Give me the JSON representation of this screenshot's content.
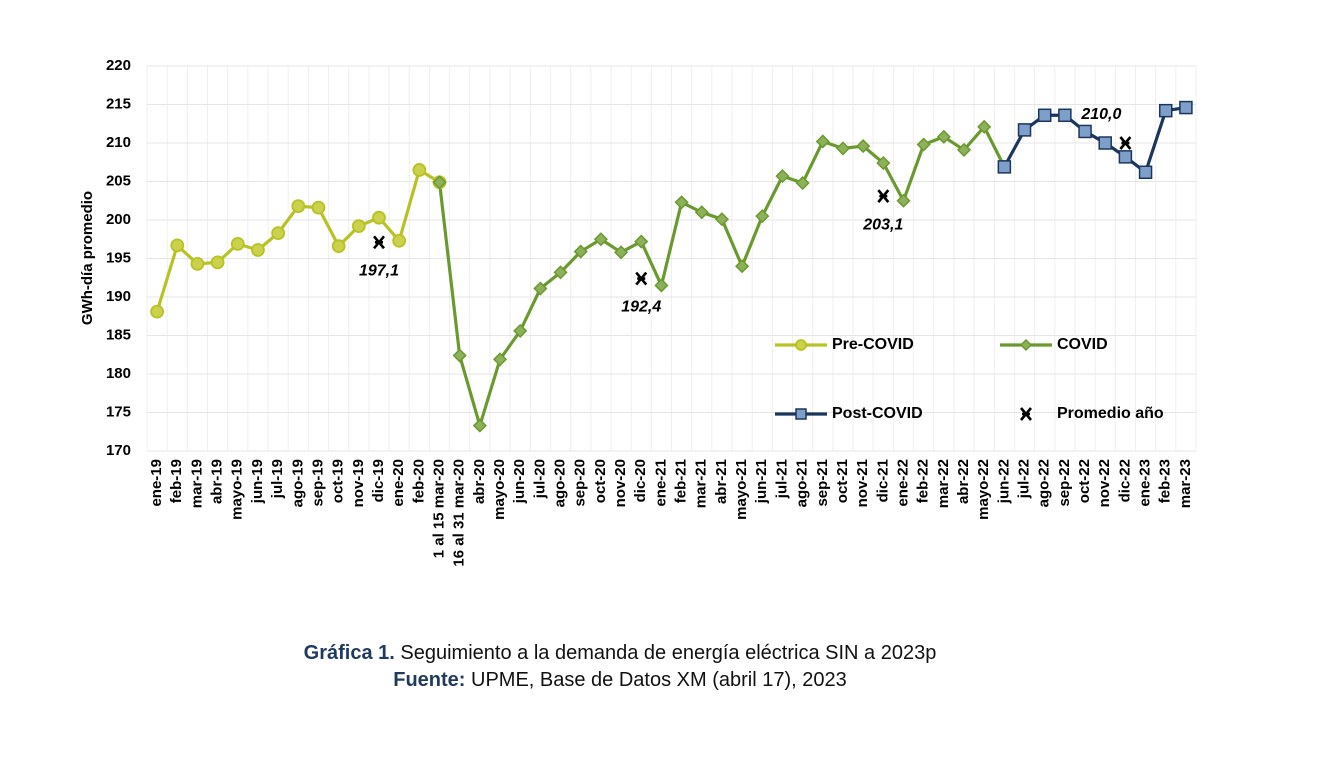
{
  "chart_data": {
    "type": "line",
    "y_label": "GWh-día promedio",
    "categories": [
      "ene-19",
      "feb-19",
      "mar-19",
      "abr-19",
      "mayo-19",
      "jun-19",
      "jul-19",
      "ago-19",
      "sep-19",
      "oct-19",
      "nov-19",
      "dic-19",
      "ene-20",
      "feb-20",
      "1 al 15 mar-20",
      "16 al 31 mar-20",
      "abr-20",
      "mayo-20",
      "jun-20",
      "jul-20",
      "ago-20",
      "sep-20",
      "oct-20",
      "nov-20",
      "dic-20",
      "ene-21",
      "feb-21",
      "mar-21",
      "abr-21",
      "mayo-21",
      "jun-21",
      "jul-21",
      "ago-21",
      "sep-21",
      "oct-21",
      "nov-21",
      "dic-21",
      "ene-22",
      "feb-22",
      "mar-22",
      "abr-22",
      "mayo-22",
      "jun-22",
      "jul-22",
      "ago-22",
      "sep-22",
      "oct-22",
      "nov-22",
      "dic-22",
      "ene-23",
      "feb-23",
      "mar-23"
    ],
    "series": [
      {
        "name": "Pre-COVID",
        "color": "#b8c224",
        "fill": "#c9d24a",
        "marker": "circle",
        "line": true,
        "values": [
          188.1,
          196.7,
          194.3,
          194.5,
          196.9,
          196.1,
          198.3,
          201.8,
          201.6,
          196.6,
          199.2,
          200.3,
          197.3,
          206.5,
          204.9,
          null,
          null,
          null,
          null,
          null,
          null,
          null,
          null,
          null,
          null,
          null,
          null,
          null,
          null,
          null,
          null,
          null,
          null,
          null,
          null,
          null,
          null,
          null,
          null,
          null,
          null,
          null,
          null,
          null,
          null,
          null,
          null,
          null,
          null,
          null,
          null,
          null
        ]
      },
      {
        "name": "COVID",
        "color": "#6a9a2e",
        "fill": "#8db15a",
        "marker": "diamond",
        "line": true,
        "values": [
          null,
          null,
          null,
          null,
          null,
          null,
          null,
          null,
          null,
          null,
          null,
          null,
          null,
          null,
          204.9,
          182.4,
          173.3,
          181.9,
          185.6,
          191.1,
          193.2,
          195.9,
          197.5,
          195.8,
          197.2,
          191.5,
          202.3,
          201.0,
          200.1,
          194.0,
          200.5,
          205.7,
          204.8,
          210.2,
          209.3,
          209.6,
          207.4,
          202.5,
          209.8,
          210.8,
          209.1,
          212.1,
          206.9,
          null,
          null,
          null,
          null,
          null,
          null,
          null,
          null,
          null
        ]
      },
      {
        "name": "Post-COVID",
        "color": "#1b365d",
        "fill": "#7f9fcb",
        "marker": "square",
        "line": true,
        "values": [
          null,
          null,
          null,
          null,
          null,
          null,
          null,
          null,
          null,
          null,
          null,
          null,
          null,
          null,
          null,
          null,
          null,
          null,
          null,
          null,
          null,
          null,
          null,
          null,
          null,
          null,
          null,
          null,
          null,
          null,
          null,
          null,
          null,
          null,
          null,
          null,
          null,
          null,
          null,
          null,
          null,
          null,
          206.9,
          211.7,
          213.6,
          213.6,
          211.5,
          210.0,
          208.2,
          206.2,
          214.2,
          214.6
        ]
      },
      {
        "name": "Promedio año",
        "color": "#000000",
        "fill": "#000000",
        "marker": "x",
        "line": false,
        "values": [
          null,
          null,
          null,
          null,
          null,
          null,
          null,
          null,
          null,
          null,
          null,
          197.1,
          null,
          null,
          null,
          null,
          null,
          null,
          null,
          null,
          null,
          null,
          null,
          null,
          192.4,
          null,
          null,
          null,
          null,
          null,
          null,
          null,
          null,
          null,
          null,
          null,
          203.1,
          null,
          null,
          null,
          null,
          null,
          null,
          null,
          null,
          null,
          null,
          null,
          210.0,
          null,
          null,
          null
        ],
        "value_labels": [
          null,
          null,
          null,
          null,
          null,
          null,
          null,
          null,
          null,
          null,
          null,
          "197,1",
          null,
          null,
          null,
          null,
          null,
          null,
          null,
          null,
          null,
          null,
          null,
          null,
          "192,4",
          null,
          null,
          null,
          null,
          null,
          null,
          null,
          null,
          null,
          null,
          null,
          "203,1",
          null,
          null,
          null,
          null,
          null,
          null,
          null,
          null,
          null,
          null,
          null,
          "210,0",
          null,
          null,
          null
        ]
      }
    ],
    "ylim": [
      170,
      220
    ],
    "yticks": [
      170,
      175,
      180,
      185,
      190,
      195,
      200,
      205,
      210,
      215,
      220
    ],
    "grid": true
  },
  "caption": {
    "label": "Gráfica 1.",
    "text": "Seguimiento a la demanda de energía eléctrica SIN a 2023p",
    "source_label": "Fuente:",
    "source_text": "UPME, Base de Datos XM (abril 17), 2023"
  }
}
